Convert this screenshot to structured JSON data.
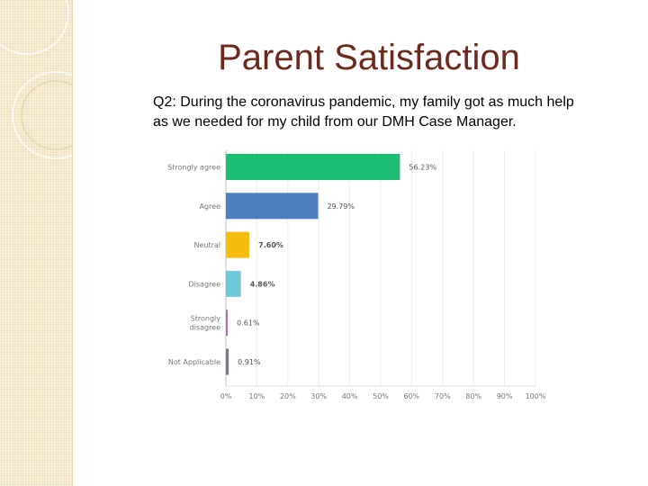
{
  "slide": {
    "title": "Parent Satisfaction",
    "question": "Q2: During the coronavirus pandemic, my family got as much help as we needed for my child from our DMH Case Manager."
  },
  "colors": {
    "title": "#6b2a1c",
    "sidebar": "#f1e3c0",
    "axis_text": "#777777"
  },
  "chart_data": {
    "type": "bar",
    "orientation": "horizontal",
    "title": "",
    "xlabel": "",
    "ylabel": "",
    "xlim": [
      0,
      100
    ],
    "grid": true,
    "categories": [
      [
        "Strongly agree"
      ],
      [
        "Agree"
      ],
      [
        "Neutral"
      ],
      [
        "Disagree"
      ],
      [
        "Strongly",
        "disagree"
      ],
      [
        "Not Applicable"
      ]
    ],
    "values": [
      56.23,
      29.79,
      7.6,
      4.86,
      0.61,
      0.91
    ],
    "labels": [
      "56.23%",
      "29.79%",
      "7.60%",
      "4.86%",
      "0.61%",
      "0.91%"
    ],
    "bar_colors": [
      "#1dbe73",
      "#4c7fbd",
      "#f6bd0e",
      "#6ecad6",
      "#b06fb0",
      "#7a7a8c"
    ],
    "x_ticks": [
      "0%",
      "10%",
      "20%",
      "30%",
      "40%",
      "50%",
      "60%",
      "70%",
      "80%",
      "90%",
      "100%"
    ]
  }
}
